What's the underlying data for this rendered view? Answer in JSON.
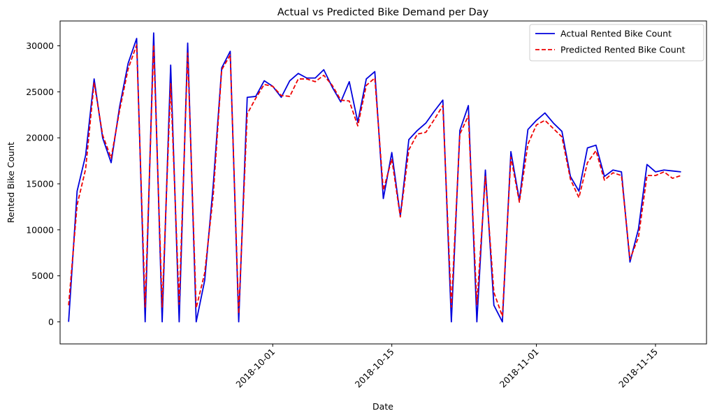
{
  "chart_data": {
    "type": "line",
    "title": "Actual vs Predicted Bike Demand per Day",
    "xlabel": "Date",
    "ylabel": "Rented Bike Count",
    "ylim": [
      -2400,
      32700
    ],
    "xlim": [
      "2018-09-18",
      "2018-12-03"
    ],
    "yticks": [
      0,
      5000,
      10000,
      15000,
      20000,
      25000,
      30000
    ],
    "xticks": [
      {
        "label": "2018-10-01",
        "day": 13
      },
      {
        "label": "2018-10-15",
        "day": 27
      },
      {
        "label": "2018-11-01",
        "day": 44
      },
      {
        "label": "2018-11-15",
        "day": 58
      },
      {
        "label": "2018-12-01",
        "day": 74
      }
    ],
    "legend": {
      "position": "top-right"
    },
    "x_days": [
      1,
      2,
      3,
      4,
      5,
      6,
      7,
      8,
      9,
      10,
      11,
      12,
      13,
      14,
      15,
      16,
      17,
      18,
      19,
      20,
      21,
      22,
      23,
      24,
      25,
      26,
      27,
      28,
      29,
      30,
      31,
      32,
      33,
      34,
      35,
      36,
      37,
      38,
      39,
      40,
      41,
      42,
      43,
      44,
      45,
      46,
      47,
      48,
      49,
      50,
      51,
      52,
      53,
      54,
      55,
      56,
      57,
      58,
      59,
      60,
      61,
      62,
      63,
      64,
      65,
      66,
      67,
      68,
      69,
      70,
      71,
      72,
      73
    ],
    "series": [
      {
        "name": "Actual Rented Bike Count",
        "color": "#0000dd",
        "style": "solid",
        "values": [
          0,
          14200,
          18100,
          26400,
          20000,
          17300,
          23400,
          28100,
          30800,
          0,
          31400,
          0,
          27900,
          0,
          30300,
          0,
          4500,
          14800,
          27600,
          29400,
          0,
          24400,
          24500,
          26200,
          25600,
          24400,
          26200,
          27000,
          26500,
          26500,
          27400,
          25500,
          23900,
          26100,
          21700,
          26400,
          27200,
          13400,
          18400,
          11500,
          19800,
          20800,
          21600,
          22900,
          24100,
          0,
          20800,
          23500,
          0,
          16500,
          1800,
          0,
          18500,
          13200,
          20900,
          21900,
          22700,
          21600,
          20700,
          15800,
          14200,
          18900,
          19200,
          15800,
          16500,
          16300,
          6500,
          10100,
          17100,
          16300,
          16500,
          16400,
          16300
        ]
      },
      {
        "name": "Predicted Rented Bike Count",
        "color": "#ee0000",
        "style": "dashed",
        "values": [
          1800,
          12700,
          16600,
          26000,
          20300,
          17800,
          23000,
          27500,
          30100,
          1600,
          30100,
          1600,
          25900,
          1900,
          29200,
          1500,
          5300,
          13700,
          27400,
          29000,
          900,
          22600,
          24300,
          25800,
          25600,
          24600,
          24500,
          26400,
          26400,
          26100,
          26800,
          25700,
          24100,
          24000,
          21300,
          25700,
          26500,
          14300,
          17700,
          11400,
          18700,
          20400,
          20600,
          22000,
          23500,
          1600,
          20400,
          22400,
          1900,
          15800,
          3200,
          600,
          17900,
          13000,
          19300,
          21400,
          21900,
          21000,
          20100,
          15500,
          13500,
          17300,
          18600,
          15400,
          16200,
          15900,
          6800,
          9200,
          15900,
          15900,
          16300,
          15600,
          15900
        ]
      }
    ]
  }
}
